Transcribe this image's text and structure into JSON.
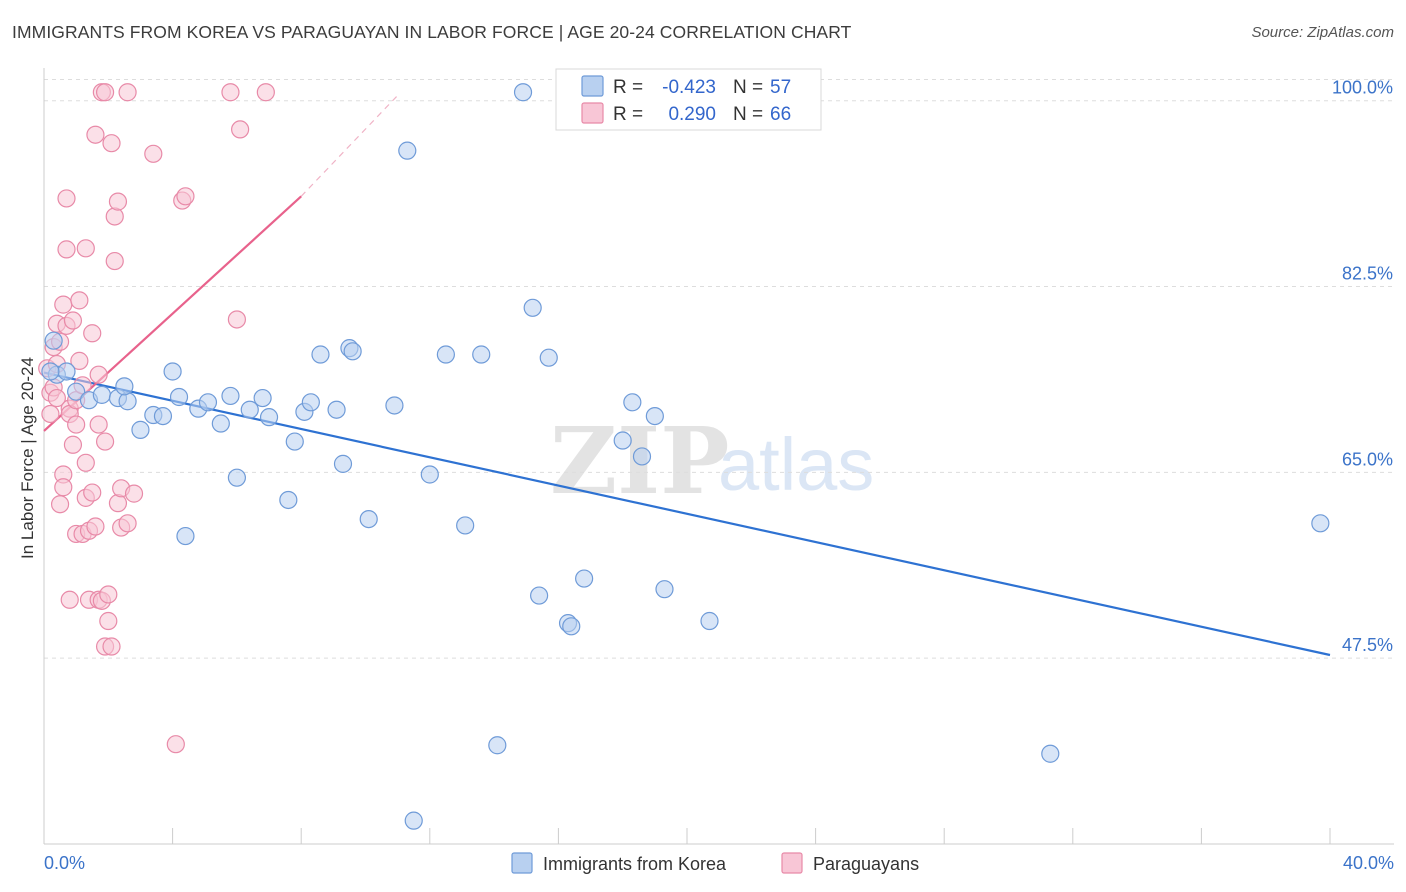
{
  "header": {
    "title": "IMMIGRANTS FROM KOREA VS PARAGUAYAN IN LABOR FORCE | AGE 20-24 CORRELATION CHART",
    "source": "Source: ZipAtlas.com"
  },
  "watermark": {
    "zip": "ZIP",
    "atlas": "atlas"
  },
  "colors": {
    "korea_fill": "#b8d0f0",
    "korea_stroke": "#6f9bd8",
    "korea_line": "#2e72d2",
    "paraguay_fill": "#f8c6d6",
    "paraguay_stroke": "#e88aa8",
    "paraguay_line": "#e8628c",
    "grid": "#dddddd",
    "tick_label": "#3b73c9"
  },
  "legend": {
    "rows": [
      {
        "r_label": "R =",
        "r_value": "-0.423",
        "n_label": "N =",
        "n_value": "57"
      },
      {
        "r_label": "R =",
        "r_value": "0.290",
        "n_label": "N =",
        "n_value": "66"
      }
    ]
  },
  "chart_data": {
    "type": "scatter",
    "title": "IMMIGRANTS FROM KOREA VS PARAGUAYAN IN LABOR FORCE | AGE 20-24 CORRELATION CHART",
    "xlabel": "",
    "ylabel": "In Labor Force | Age 20-24",
    "xlim": [
      0,
      40
    ],
    "ylim": [
      30,
      102
    ],
    "x_tick_labels": [
      "0.0%",
      "40.0%"
    ],
    "y_ticks": [
      47.5,
      65.0,
      82.5,
      100.0
    ],
    "y_tick_labels": [
      "47.5%",
      "65.0%",
      "82.5%",
      "100.0%"
    ],
    "legend_position": "top-center",
    "series": [
      {
        "name": "Immigrants from Korea",
        "R": -0.423,
        "N": 57,
        "trend": {
          "x": [
            0,
            40
          ],
          "y": [
            74.4,
            47.8
          ]
        },
        "points": [
          [
            0.3,
            77.4
          ],
          [
            0.4,
            74.2
          ],
          [
            0.7,
            74.5
          ],
          [
            1.0,
            72.6
          ],
          [
            1.4,
            71.8
          ],
          [
            1.8,
            72.3
          ],
          [
            2.3,
            72.0
          ],
          [
            2.6,
            71.7
          ],
          [
            3.0,
            69.0
          ],
          [
            3.4,
            70.4
          ],
          [
            3.7,
            70.3
          ],
          [
            4.0,
            74.5
          ],
          [
            4.2,
            72.1
          ],
          [
            4.4,
            59.0
          ],
          [
            4.8,
            71.0
          ],
          [
            5.1,
            71.6
          ],
          [
            5.5,
            69.6
          ],
          [
            5.8,
            72.2
          ],
          [
            6.0,
            64.5
          ],
          [
            6.4,
            70.9
          ],
          [
            6.8,
            72.0
          ],
          [
            7.0,
            70.2
          ],
          [
            7.6,
            62.4
          ],
          [
            7.8,
            67.9
          ],
          [
            8.1,
            70.7
          ],
          [
            8.3,
            71.6
          ],
          [
            8.6,
            76.1
          ],
          [
            9.1,
            70.9
          ],
          [
            9.3,
            65.8
          ],
          [
            9.5,
            76.7
          ],
          [
            9.6,
            76.4
          ],
          [
            10.1,
            60.6
          ],
          [
            10.9,
            71.3
          ],
          [
            11.3,
            95.3
          ],
          [
            11.5,
            32.2
          ],
          [
            12.0,
            64.8
          ],
          [
            12.5,
            76.1
          ],
          [
            13.1,
            60.0
          ],
          [
            13.6,
            76.1
          ],
          [
            14.1,
            39.3
          ],
          [
            14.9,
            100.8
          ],
          [
            15.2,
            80.5
          ],
          [
            15.4,
            53.4
          ],
          [
            15.7,
            75.8
          ],
          [
            16.3,
            50.8
          ],
          [
            16.4,
            50.5
          ],
          [
            16.8,
            55.0
          ],
          [
            18.0,
            68.0
          ],
          [
            18.3,
            71.6
          ],
          [
            18.6,
            66.5
          ],
          [
            19.0,
            70.3
          ],
          [
            19.3,
            54.0
          ],
          [
            20.7,
            51.0
          ],
          [
            31.3,
            38.5
          ],
          [
            39.7,
            60.2
          ],
          [
            0.2,
            74.5
          ],
          [
            2.5,
            73.1
          ]
        ]
      },
      {
        "name": "Paraguayans",
        "R": 0.29,
        "N": 66,
        "trend": {
          "x": [
            0,
            8.0
          ],
          "y": [
            68.9,
            91.0
          ]
        },
        "trend_extension": {
          "x": [
            8.0,
            11.0
          ],
          "y": [
            91.0,
            100.5
          ]
        },
        "points": [
          [
            0.1,
            74.8
          ],
          [
            0.2,
            72.5
          ],
          [
            0.2,
            70.5
          ],
          [
            0.3,
            76.8
          ],
          [
            0.3,
            73.0
          ],
          [
            0.4,
            75.2
          ],
          [
            0.4,
            72.0
          ],
          [
            0.4,
            79.0
          ],
          [
            0.5,
            62.0
          ],
          [
            0.5,
            77.3
          ],
          [
            0.6,
            80.8
          ],
          [
            0.6,
            64.8
          ],
          [
            0.6,
            63.6
          ],
          [
            0.7,
            90.8
          ],
          [
            0.7,
            86.0
          ],
          [
            0.7,
            78.8
          ],
          [
            0.8,
            71.0
          ],
          [
            0.8,
            70.5
          ],
          [
            0.8,
            53.0
          ],
          [
            0.9,
            67.6
          ],
          [
            0.9,
            79.3
          ],
          [
            1.0,
            59.2
          ],
          [
            1.0,
            69.5
          ],
          [
            1.0,
            71.8
          ],
          [
            1.1,
            75.5
          ],
          [
            1.1,
            81.2
          ],
          [
            1.2,
            59.2
          ],
          [
            1.2,
            73.2
          ],
          [
            1.3,
            62.6
          ],
          [
            1.3,
            65.9
          ],
          [
            1.3,
            86.1
          ],
          [
            1.4,
            53.0
          ],
          [
            1.4,
            59.5
          ],
          [
            1.5,
            63.1
          ],
          [
            1.5,
            78.1
          ],
          [
            1.6,
            96.8
          ],
          [
            1.6,
            59.9
          ],
          [
            1.7,
            74.2
          ],
          [
            1.7,
            69.5
          ],
          [
            1.7,
            53.0
          ],
          [
            1.8,
            100.8
          ],
          [
            1.8,
            52.9
          ],
          [
            1.9,
            100.8
          ],
          [
            1.9,
            67.9
          ],
          [
            1.9,
            48.6
          ],
          [
            2.0,
            51.0
          ],
          [
            2.0,
            53.5
          ],
          [
            2.1,
            48.6
          ],
          [
            2.1,
            96.0
          ],
          [
            2.2,
            89.1
          ],
          [
            2.2,
            84.9
          ],
          [
            2.3,
            90.5
          ],
          [
            2.3,
            62.1
          ],
          [
            2.4,
            63.5
          ],
          [
            2.4,
            59.8
          ],
          [
            2.6,
            100.8
          ],
          [
            2.6,
            60.2
          ],
          [
            2.8,
            63.0
          ],
          [
            3.4,
            95.0
          ],
          [
            4.1,
            39.4
          ],
          [
            4.3,
            90.6
          ],
          [
            4.4,
            91.0
          ],
          [
            5.8,
            100.8
          ],
          [
            6.0,
            79.4
          ],
          [
            6.1,
            97.3
          ],
          [
            6.9,
            100.8
          ]
        ]
      }
    ]
  }
}
